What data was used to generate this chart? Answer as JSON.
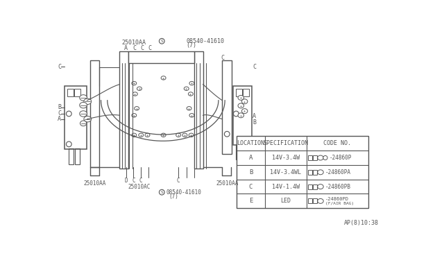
{
  "bg_color": "white",
  "lc": "#555555",
  "table_headers": [
    "LOCATION",
    "SPECIFICATION",
    "CODE NO."
  ],
  "table_rows": [
    [
      "A",
      "14V-3.4W",
      "24860P"
    ],
    [
      "B",
      "14V-3.4WL",
      "24860PA"
    ],
    [
      "C",
      "14V-1.4W",
      "24860PB"
    ],
    [
      "E",
      "LED",
      "24860PD\n(F/AIR BAG)"
    ]
  ],
  "timestamp": "AP(8)10:38",
  "label_25010AA_top": "25010AA",
  "label_s_top": "08540-41610",
  "label_s_top2": "(7)",
  "label_25010AA_bot_left": "25010AA",
  "label_25010AC": "25010AC",
  "label_s_bot": "08540-41610",
  "label_s_bot2": "(7)",
  "label_25010AA_bot_right": "25010AA"
}
